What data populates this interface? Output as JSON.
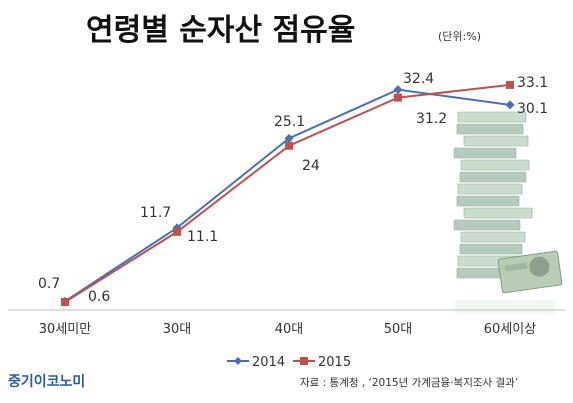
{
  "chart_data": {
    "type": "line",
    "title": "연령별 순자산 점유율",
    "unit": "(단위:%)",
    "categories": [
      "30세미만",
      "30대",
      "40대",
      "50대",
      "60세이상"
    ],
    "series": [
      {
        "name": "2014",
        "values": [
          0.7,
          11.7,
          25.1,
          32.4,
          30.1
        ],
        "color": "#4a70b0",
        "marker": "diamond"
      },
      {
        "name": "2015",
        "values": [
          0.6,
          11.1,
          24,
          31.2,
          33.1
        ],
        "color": "#c0504d",
        "marker": "square"
      }
    ],
    "ylim": [
      0,
      35
    ],
    "grid": false,
    "legend": "bottom"
  },
  "source": "자료 : 통계청 , ‘2015년 가계금융·복지조사  결과’",
  "brand": "중기이코노미",
  "colors": {
    "axis": "#bfbfbf",
    "brand": "#2a5aa8"
  }
}
